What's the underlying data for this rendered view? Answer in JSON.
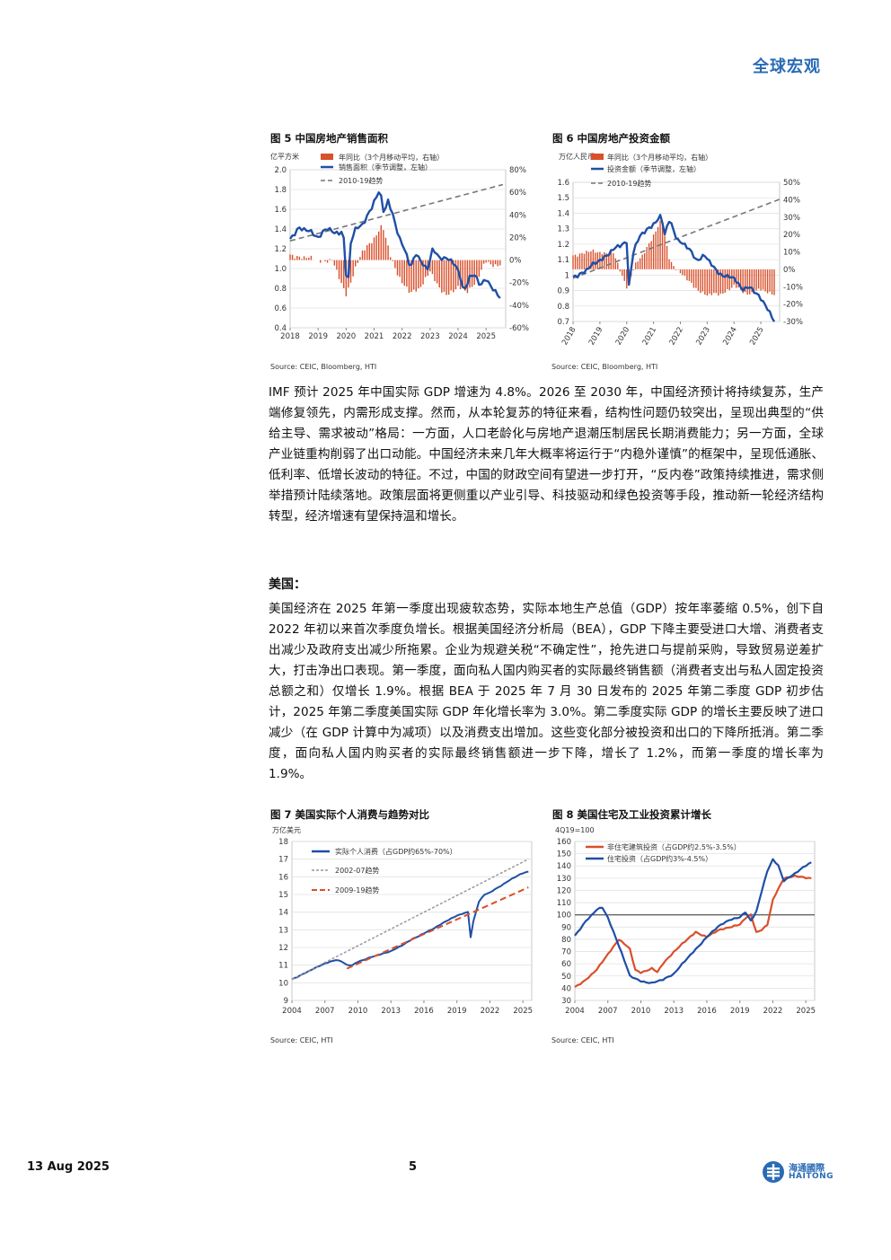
{
  "header": {
    "title": "全球宏观"
  },
  "footer": {
    "date": "13 Aug 2025",
    "page": "5",
    "logo_cn": "海通國際",
    "logo_en": "HAITONG"
  },
  "fig5": {
    "title": "图 5 中国房地产销售面积",
    "source": "Source: CEIC, Bloomberg, HTI",
    "chart_data": {
      "type": "line",
      "title": "图 5 中国房地产销售面积",
      "left_unit": "亿平方米",
      "legend": [
        "年同比（3个月移动平均，右轴）",
        "销售面积（季节调整，左轴）",
        "2010-19趋势"
      ],
      "x_ticks": [
        "2018",
        "2019",
        "2020",
        "2021",
        "2022",
        "2023",
        "2024",
        "2025"
      ],
      "y_left_ticks": [
        "2.0",
        "1.8",
        "1.6",
        "1.4",
        "1.2",
        "1.0",
        "0.8",
        "0.6",
        "0.4"
      ],
      "y_right_ticks": [
        "80%",
        "60%",
        "40%",
        "20%",
        "0%",
        "-20%",
        "-40%",
        "-60%"
      ],
      "ylim_left": [
        0.4,
        2.0
      ],
      "ylim_right": [
        -60,
        80
      ],
      "xlim": [
        2018,
        2025.7
      ],
      "series": [
        {
          "name": "销售面积（季节调整，左轴）",
          "axis": "left",
          "x": [
            2018,
            2018.3,
            2018.6,
            2019,
            2019.3,
            2019.6,
            2019.9,
            2020.05,
            2020.15,
            2020.3,
            2020.6,
            2020.9,
            2021.0,
            2021.2,
            2021.35,
            2021.5,
            2021.7,
            2021.9,
            2022.1,
            2022.3,
            2022.5,
            2022.7,
            2022.9,
            2023.1,
            2023.3,
            2023.6,
            2023.9,
            2024.1,
            2024.2,
            2024.4,
            2024.6,
            2024.8,
            2025.0,
            2025.3,
            2025.5
          ],
          "y": [
            1.3,
            1.42,
            1.38,
            1.32,
            1.42,
            1.34,
            1.38,
            0.74,
            1.25,
            1.38,
            1.44,
            1.62,
            1.69,
            1.79,
            1.55,
            1.68,
            1.52,
            1.32,
            1.18,
            1.0,
            1.15,
            1.08,
            0.98,
            1.2,
            1.1,
            1.12,
            1.04,
            0.88,
            0.75,
            0.92,
            0.95,
            0.82,
            0.88,
            0.78,
            0.72
          ]
        },
        {
          "name": "年同比（3个月移动平均，右轴）",
          "axis": "right",
          "x": [
            2018,
            2018.5,
            2019,
            2019.5,
            2020,
            2020.3,
            2020.6,
            2021.0,
            2021.3,
            2021.6,
            2022.0,
            2022.3,
            2022.6,
            2023.0,
            2023.3,
            2023.6,
            2024.0,
            2024.3,
            2024.6,
            2025.0,
            2025.3,
            2025.5
          ],
          "y": [
            5,
            2,
            0,
            -1,
            -30,
            -10,
            8,
            20,
            30,
            2,
            -20,
            -30,
            -25,
            -10,
            -25,
            -30,
            -25,
            -28,
            -20,
            -2,
            -5,
            -3
          ]
        },
        {
          "name": "2010-19趋势",
          "axis": "left",
          "x": [
            2018,
            2025.6
          ],
          "y": [
            1.28,
            1.85
          ]
        }
      ]
    }
  },
  "fig6": {
    "title": "图 6 中国房地产投资金额",
    "source": "Source: CEIC, Bloomberg, HTI",
    "chart_data": {
      "type": "line",
      "title": "图 6 中国房地产投资金额",
      "left_unit": "万亿人民币",
      "legend": [
        "年同比（3个月移动平均，右轴）",
        "投资金额（季节调整，左轴）",
        "2010-19趋势"
      ],
      "x_ticks": [
        "2018",
        "2019",
        "2020",
        "2021",
        "2022",
        "2023",
        "2024",
        "2025"
      ],
      "y_left_ticks": [
        "1.6",
        "1.5",
        "1.4",
        "1.3",
        "1.2",
        "1.1",
        "1",
        "0.9",
        "0.8",
        "0.7"
      ],
      "y_right_ticks": [
        "50%",
        "40%",
        "30%",
        "20%",
        "10%",
        "0%",
        "-10%",
        "-20%",
        "-30%"
      ],
      "ylim_left": [
        0.7,
        1.6
      ],
      "ylim_right": [
        -30,
        50
      ],
      "xlim": [
        2018,
        2025.7
      ],
      "series": [
        {
          "name": "投资金额（季节调整，左轴）",
          "axis": "left",
          "x": [
            2018,
            2018.5,
            2019,
            2019.5,
            2020.0,
            2020.1,
            2020.2,
            2020.5,
            2020.9,
            2021.3,
            2021.4,
            2021.6,
            2021.9,
            2022.3,
            2022.6,
            2022.9,
            2023.3,
            2023.6,
            2023.9,
            2024.3,
            2024.6,
            2024.9,
            2025.2,
            2025.5
          ],
          "y": [
            0.99,
            1.03,
            1.1,
            1.16,
            1.22,
            0.88,
            1.13,
            1.25,
            1.32,
            1.38,
            1.25,
            1.36,
            1.23,
            1.17,
            1.1,
            1.13,
            1.03,
            1.0,
            0.99,
            0.91,
            0.93,
            0.86,
            0.8,
            0.71
          ]
        },
        {
          "name": "年同比（3个月移动平均，右轴）",
          "axis": "right",
          "x": [
            2018,
            2018.5,
            2019,
            2019.5,
            2020,
            2020.3,
            2020.6,
            2021,
            2021.3,
            2021.6,
            2022,
            2022.5,
            2023,
            2023.5,
            2024,
            2024.5,
            2025,
            2025.5
          ],
          "y": [
            8,
            10,
            10,
            9,
            -10,
            2,
            8,
            20,
            28,
            5,
            -2,
            -10,
            -15,
            -14,
            -10,
            -14,
            -12,
            -14
          ]
        },
        {
          "name": "2010-19趋势",
          "axis": "left",
          "x": [
            2018,
            2025.7
          ],
          "y": [
            0.98,
            1.49
          ]
        }
      ]
    }
  },
  "para1": "IMF 预计 2025 年中国实际 GDP 增速为 4.8%。2026 至 2030 年，中国经济预计将持续复苏，生产端修复领先，内需形成支撑。然而，从本轮复苏的特征来看，结构性问题仍较突出，呈现出典型的“供给主导、需求被动”格局：一方面，人口老龄化与房地产退潮压制居民长期消费能力；另一方面，全球产业链重构削弱了出口动能。中国经济未来几年大概率将运行于“内稳外谨慎”的框架中，呈现低通胀、低利率、低增长波动的特征。不过，中国的财政空间有望进一步打开，“反内卷”政策持续推进，需求侧举措预计陆续落地。政策层面将更侧重以产业引导、科技驱动和绿色投资等手段，推动新一轮经济结构转型，经济增速有望保持温和增长。",
  "section_us": "美国：",
  "para2": "美国经济在 2025 年第一季度出现疲软态势，实际本地生产总值（GDP）按年率萎缩 0.5%，创下自 2022 年初以来首次季度负增长。根据美国经济分析局（BEA），GDP 下降主要受进口大增、消费者支出减少及政府支出减少所拖累。企业为规避关税“不确定性”，抢先进口与提前采购，导致贸易逆差扩大，打击净出口表现。第一季度，面向私人国内购买者的实际最终销售额（消费者支出与私人固定投资总额之和）仅增长 1.9%。根据 BEA 于 2025 年 7 月 30 日发布的 2025 年第二季度 GDP 初步估计，2025 年第二季度美国实际 GDP 年化增长率为 3.0%。第二季度实际 GDP 的增长主要反映了进口减少（在 GDP 计算中为减项）以及消费支出增加。这些变化部分被投资和出口的下降所抵消。第二季度，面向私人国内购买者的实际最终销售额进一步下降，增长了 1.2%，而第一季度的增长率为 1.9%。",
  "fig7": {
    "title": "图 7 美国实际个人消费与趋势对比",
    "source": "Source: CEIC, HTI",
    "chart_data": {
      "type": "line",
      "title": "图 7 美国实际个人消费与趋势对比",
      "unit": "万亿美元",
      "legend": [
        "实际个人消费（占GDP约65%-70%）",
        "2002-07趋势",
        "2009-19趋势"
      ],
      "x_ticks": [
        "2004",
        "2007",
        "2010",
        "2013",
        "2016",
        "2019",
        "2022",
        "2025"
      ],
      "y_ticks": [
        "18",
        "17",
        "16",
        "15",
        "14",
        "13",
        "12",
        "11",
        "10",
        "9"
      ],
      "ylim": [
        9,
        18
      ],
      "xlim": [
        2004,
        2025.8
      ],
      "series": [
        {
          "name": "实际个人消费（占GDP约65%-70%）",
          "x": [
            2004,
            2005,
            2006,
            2007,
            2008,
            2008.5,
            2009,
            2009.5,
            2010,
            2011,
            2012,
            2013,
            2014,
            2015,
            2016,
            2017,
            2018,
            2019,
            2020.0,
            2020.25,
            2020.5,
            2021,
            2021.5,
            2022,
            2023,
            2024,
            2025,
            2025.5
          ],
          "y": [
            10.2,
            10.5,
            10.8,
            11.1,
            11.3,
            11.2,
            11.0,
            11.0,
            11.2,
            11.4,
            11.6,
            11.8,
            12.1,
            12.5,
            12.8,
            13.1,
            13.5,
            13.8,
            14.0,
            12.6,
            13.5,
            14.6,
            15.0,
            15.1,
            15.5,
            15.9,
            16.2,
            16.3
          ]
        },
        {
          "name": "2002-07趋势",
          "x": [
            2004,
            2025.5
          ],
          "y": [
            10.2,
            17.0
          ]
        },
        {
          "name": "2009-19趋势",
          "x": [
            2009,
            2025.5
          ],
          "y": [
            10.8,
            15.4
          ]
        }
      ]
    }
  },
  "fig8": {
    "title": "图 8 美国住宅及工业投资累计增长",
    "source": "Source: CEIC, HTI",
    "chart_data": {
      "type": "line",
      "title": "图 8 美国住宅及工业投资累计增长",
      "unit": "4Q19=100",
      "legend": [
        "非住宅建筑投资（占GDP约2.5%-3.5%）",
        "住宅投资（占GDP约3%-4.5%）"
      ],
      "x_ticks": [
        "2004",
        "2007",
        "2010",
        "2013",
        "2016",
        "2019",
        "2022",
        "2025"
      ],
      "y_ticks": [
        "160",
        "150",
        "140",
        "130",
        "120",
        "110",
        "100",
        "90",
        "80",
        "70",
        "60",
        "50",
        "40",
        "30"
      ],
      "ylim": [
        30,
        160
      ],
      "xlim": [
        2004,
        2025.8
      ],
      "series": [
        {
          "name": "非住宅建筑投资（占GDP约2.5%-3.5%）",
          "x": [
            2004,
            2005,
            2006,
            2007,
            2008,
            2009,
            2009.5,
            2010,
            2011,
            2011.5,
            2012,
            2013,
            2014,
            2015,
            2016,
            2017,
            2018,
            2019,
            2019.5,
            2020,
            2020.5,
            2021,
            2021.5,
            2022,
            2023,
            2024,
            2025,
            2025.5
          ],
          "y": [
            41,
            47,
            55,
            68,
            80,
            72,
            55,
            53,
            56,
            53,
            60,
            70,
            78,
            86,
            82,
            87,
            90,
            92,
            97,
            100,
            86,
            88,
            92,
            112,
            130,
            132,
            130,
            130
          ]
        },
        {
          "name": "住宅投资（占GDP约3%-4.5%）",
          "x": [
            2004,
            2005,
            2006,
            2006.5,
            2007,
            2008,
            2009,
            2010,
            2011,
            2012,
            2013,
            2014,
            2015,
            2016,
            2017,
            2018,
            2019,
            2019.5,
            2020,
            2020.5,
            2021,
            2021.5,
            2022,
            2022.5,
            2023,
            2024,
            2025,
            2025.5
          ],
          "y": [
            83,
            95,
            104,
            106,
            98,
            75,
            50,
            46,
            44,
            47,
            52,
            62,
            72,
            82,
            90,
            96,
            98,
            102,
            95,
            103,
            120,
            136,
            145,
            140,
            128,
            134,
            140,
            143
          ]
        }
      ]
    }
  }
}
